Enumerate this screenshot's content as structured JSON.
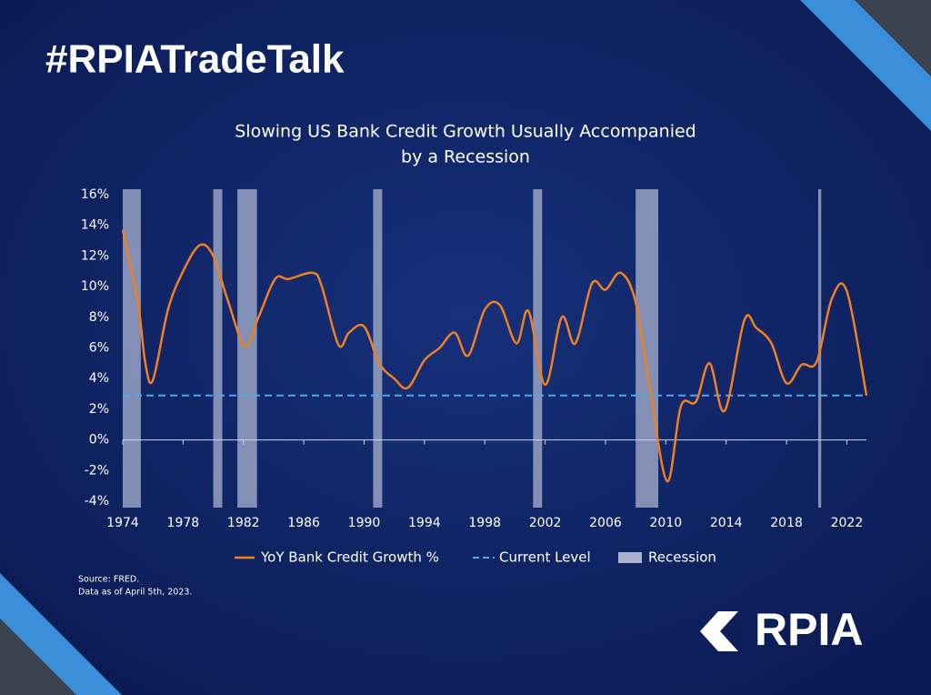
{
  "header": {
    "hashtag": "#RPIATradeTalk"
  },
  "chart_data": {
    "type": "line",
    "title": [
      "Slowing US Bank Credit Growth Usually Accompanied",
      "by a Recession"
    ],
    "x": [
      1974.0,
      1975.0,
      1975.5,
      1976.0,
      1977.0,
      1978.0,
      1979.1,
      1980.0,
      1981.0,
      1982.1,
      1983.0,
      1984.1,
      1985.0,
      1986.6,
      1987.2,
      1988.3,
      1989.0,
      1990.0,
      1991.0,
      1992.0,
      1992.9,
      1994.0,
      1995.0,
      1996.0,
      1996.9,
      1998.0,
      1999.0,
      2000.1,
      2000.9,
      2002.0,
      2003.1,
      2004.0,
      2005.1,
      2006.0,
      2007.0,
      2008.0,
      2009.0,
      2010.1,
      2011.0,
      2012.0,
      2012.9,
      2013.9,
      2015.2,
      2016.0,
      2017.0,
      2018.0,
      2019.0,
      2020.0,
      2021.0,
      2022.0,
      2023.3
    ],
    "series": [
      {
        "name": "YoY Bank Credit Growth %",
        "color": "#f07f22",
        "values": [
          13.7,
          9.0,
          5.0,
          3.9,
          8.5,
          11.0,
          12.7,
          12.0,
          9.0,
          6.1,
          8.0,
          10.5,
          10.5,
          10.9,
          10.0,
          6.2,
          7.0,
          7.4,
          5.0,
          4.0,
          3.4,
          5.2,
          6.0,
          7.0,
          5.5,
          8.5,
          8.8,
          6.3,
          8.4,
          3.6,
          8.0,
          6.3,
          10.2,
          9.8,
          10.9,
          9.0,
          3.0,
          -2.7,
          2.2,
          2.5,
          5.0,
          1.9,
          7.8,
          7.3,
          6.3,
          3.7,
          4.9,
          5.1,
          9.2,
          9.7,
          2.9
        ]
      }
    ],
    "reference_line": {
      "name": "Current Level",
      "color": "#4aa8f0",
      "value": 2.9
    },
    "recessions": {
      "name": "Recession",
      "color": "#a9b3cf",
      "spans": [
        [
          1974.0,
          1975.2
        ],
        [
          1980.0,
          1980.6
        ],
        [
          1981.6,
          1982.9
        ],
        [
          1990.6,
          1991.2
        ],
        [
          2001.2,
          2001.8
        ],
        [
          2008.0,
          2009.5
        ],
        [
          2020.1,
          2020.3
        ]
      ]
    },
    "xlim": [
      1974,
      2023.3
    ],
    "xticks": [
      1974,
      1978,
      1982,
      1986,
      1990,
      1994,
      1998,
      2002,
      2006,
      2010,
      2014,
      2018,
      2022
    ],
    "ylim": [
      -4,
      16
    ],
    "yticks": [
      {
        "value": -4,
        "label": "-4%"
      },
      {
        "value": -2,
        "label": "-2%"
      },
      {
        "value": 0,
        "label": "0%"
      },
      {
        "value": 2,
        "label": "2%"
      },
      {
        "value": 4,
        "label": "4%"
      },
      {
        "value": 6,
        "label": "6%"
      },
      {
        "value": 8,
        "label": "8%"
      },
      {
        "value": 10,
        "label": "10%"
      },
      {
        "value": 12,
        "label": "12%"
      },
      {
        "value": 14,
        "label": "14%"
      },
      {
        "value": 16,
        "label": "16%"
      }
    ]
  },
  "footer": {
    "source": "Source: FRED.",
    "note": "Data as of April 5th, 2023.",
    "logo": "RPIA"
  }
}
